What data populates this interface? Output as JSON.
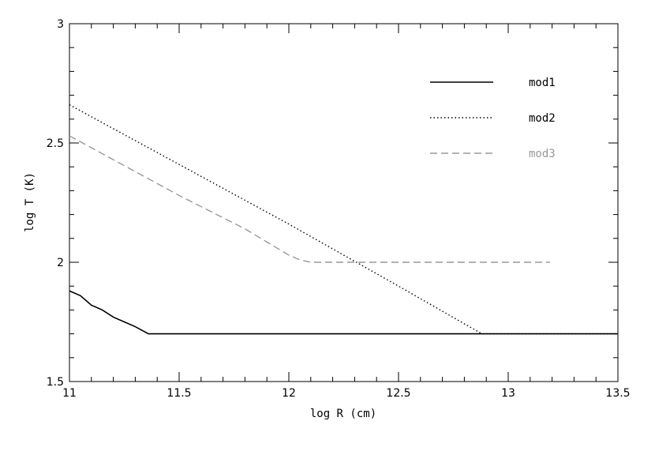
{
  "chart_data": {
    "type": "line",
    "title": "",
    "xlabel": "log R (cm)",
    "ylabel": "log T (K)",
    "xlim": [
      11,
      13.5
    ],
    "ylim": [
      1.5,
      3
    ],
    "x_ticks": [
      11,
      11.5,
      12,
      12.5,
      13,
      13.5
    ],
    "x_tick_labels": [
      "11",
      "11.5",
      "12",
      "12.5",
      "13",
      "13.5"
    ],
    "y_ticks": [
      1.5,
      2,
      2.5,
      3
    ],
    "y_tick_labels": [
      "1.5",
      "2",
      "2.5",
      "3"
    ],
    "grid": false,
    "legend_position": "top-right",
    "series": [
      {
        "name": "mod1",
        "color": "#000000",
        "style": "solid",
        "x": [
          11.0,
          11.05,
          11.1,
          11.15,
          11.2,
          11.25,
          11.3,
          11.36,
          11.5,
          12.0,
          12.5,
          13.0,
          13.5
        ],
        "y": [
          1.88,
          1.86,
          1.82,
          1.8,
          1.77,
          1.75,
          1.73,
          1.7,
          1.7,
          1.7,
          1.7,
          1.7,
          1.7
        ]
      },
      {
        "name": "mod2",
        "color": "#000000",
        "style": "dotted",
        "x": [
          11.0,
          11.5,
          12.0,
          12.5,
          12.88,
          13.0,
          13.5
        ],
        "y": [
          2.66,
          2.41,
          2.16,
          1.9,
          1.7,
          1.7,
          1.7
        ]
      },
      {
        "name": "mod3",
        "color": "#999999",
        "style": "dashed",
        "x": [
          11.0,
          11.1,
          11.3,
          11.5,
          11.8,
          12.0,
          12.05,
          12.1,
          12.5,
          13.0,
          13.19
        ],
        "y": [
          2.53,
          2.48,
          2.38,
          2.28,
          2.14,
          2.03,
          2.01,
          2.0,
          2.0,
          2.0,
          2.0
        ]
      }
    ]
  }
}
